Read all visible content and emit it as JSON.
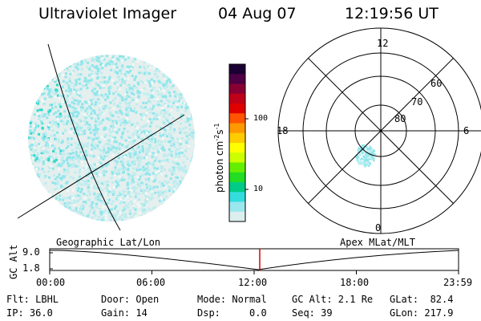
{
  "header": {
    "title": "Ultraviolet Imager",
    "date": "04 Aug 07",
    "time": "12:19:56 UT"
  },
  "colorbar": {
    "unit_text": "photon cm",
    "unit_sup1": "-2",
    "unit_mid": "s",
    "unit_sup2": "-1",
    "ticks": [
      "100",
      "10"
    ],
    "colors": [
      "#1a0033",
      "#4d0044",
      "#880033",
      "#c00018",
      "#e00000",
      "#ff5500",
      "#ff9900",
      "#ffcc00",
      "#ffff00",
      "#ccff00",
      "#66ee00",
      "#22dd22",
      "#00cc88",
      "#33dddd",
      "#99e8ee",
      "#ddeeee"
    ]
  },
  "polar_plot": {
    "mlt_labels": {
      "top": "12",
      "left": "18",
      "right": "6",
      "bottom": "0"
    },
    "lat_labels": [
      "60",
      "70",
      "80"
    ]
  },
  "timeline": {
    "left_label": "Geographic Lat/Lon",
    "right_label": "Apex  MLat/MLT",
    "y_axis_label": "GC Alt",
    "y_ticks": [
      "9.0",
      "1.8"
    ],
    "x_ticks": [
      "00:00",
      "06:00",
      "12:00",
      "18:00",
      "23:59"
    ],
    "current_time_fraction": 0.5138
  },
  "info": {
    "flt": "Flt: LBHL",
    "ip": "IP: 36.0",
    "door": "Door: Open",
    "gain": "Gain: 14",
    "mode": "Mode: Normal",
    "dsp": "Dsp:     0.0",
    "gcalt": "GC Alt: 2.1 Re",
    "seq": "Seq: 39",
    "glat": "GLat:  82.4",
    "glon": "GLon: 217.9"
  }
}
